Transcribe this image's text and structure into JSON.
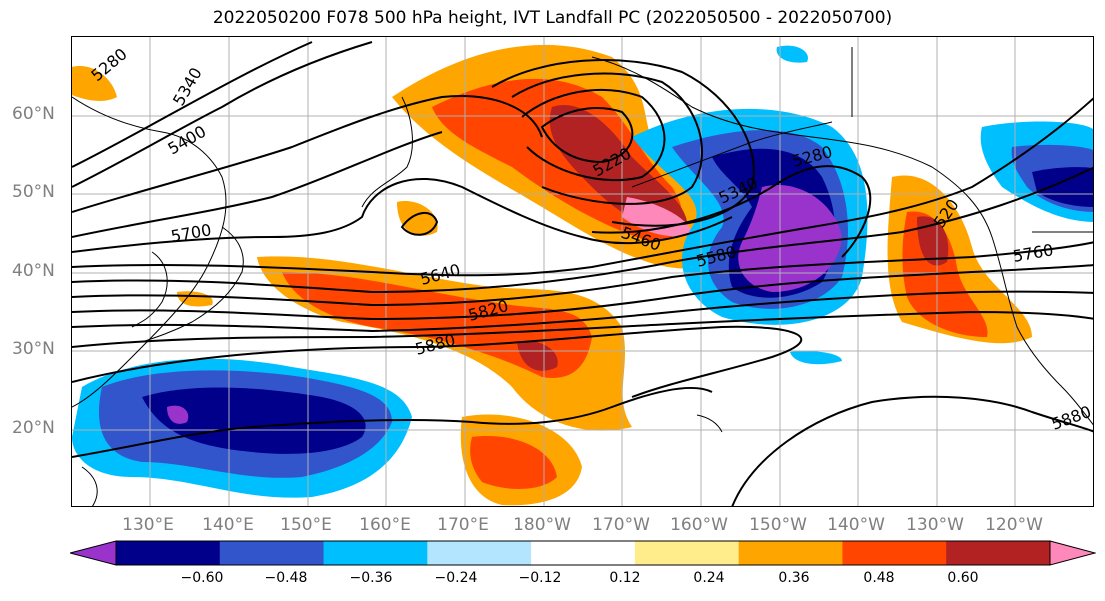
{
  "title": "2022050200 F078 500 hPa height, IVT Landfall PC (2022050500 - 2022050700)",
  "lat_labels": [
    "60°N",
    "50°N",
    "40°N",
    "30°N",
    "20°N"
  ],
  "lon_labels": [
    "130°E",
    "140°E",
    "150°E",
    "160°E",
    "170°E",
    "180°W",
    "170°W",
    "160°W",
    "150°W",
    "140°W",
    "130°W",
    "120°W"
  ],
  "contour_labels": [
    "5280",
    "5340",
    "5400",
    "5700",
    "5220",
    "5280",
    "5340",
    "5460",
    "5580",
    "5640",
    "5820",
    "5880",
    "5760",
    "5880",
    "520"
  ],
  "colorbar": {
    "ticks": [
      "−0.60",
      "−0.48",
      "−0.36",
      "−0.24",
      "−0.12",
      "0.12",
      "0.24",
      "0.36",
      "0.48",
      "0.60"
    ],
    "colors": [
      "#9933cc",
      "#00008b",
      "#3355cc",
      "#00bfff",
      "#b3e5ff",
      "#ffffff",
      "#ffec8b",
      "#ffa500",
      "#ff4500",
      "#b22222",
      "#ff88bb"
    ]
  },
  "colors": {
    "contour": "#000000",
    "grid": "#b0b0b0",
    "coast": "#000000",
    "axis_labels": "#7f7f7f"
  }
}
